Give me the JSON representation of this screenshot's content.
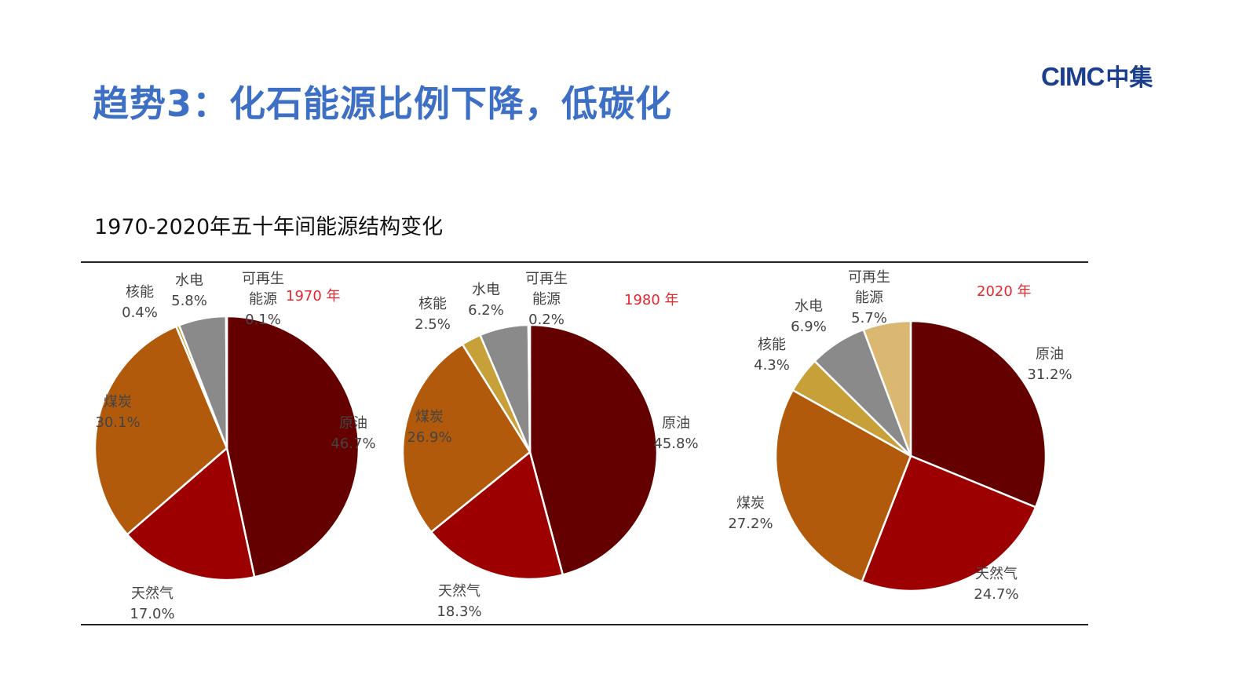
{
  "header": {
    "title": "趋势3：化石能源比例下降，低碳化",
    "brand_latin": "CIMC",
    "brand_chinese": "中集"
  },
  "chart_heading": "1970-2020年五十年间能源结构变化",
  "colors": {
    "crude_oil": "#640000",
    "natural_gas": "#9c0000",
    "coal": "#b25a0c",
    "nuclear": "#c8a03a",
    "hydro": "#8a8a8a",
    "renewables": "#dbb872",
    "year_label": "#e8262d",
    "title": "#3d6fc4"
  },
  "chart_data": [
    {
      "type": "pie",
      "title": "1970 年",
      "slices": [
        {
          "key": "crude_oil",
          "label": "原油",
          "value": 46.7,
          "value_label": "46.7%"
        },
        {
          "key": "natural_gas",
          "label": "天然气",
          "value": 17.0,
          "value_label": "17.0%"
        },
        {
          "key": "coal",
          "label": "煤炭",
          "value": 30.1,
          "value_label": "30.1%"
        },
        {
          "key": "nuclear",
          "label": "核能",
          "value": 0.4,
          "value_label": "0.4%"
        },
        {
          "key": "hydro",
          "label": "水电",
          "value": 5.8,
          "value_label": "5.8%"
        },
        {
          "key": "renewables",
          "label": "可再生能源",
          "label_lines": [
            "可再生",
            "能源"
          ],
          "value": 0.1,
          "value_label": "0.1%"
        }
      ]
    },
    {
      "type": "pie",
      "title": "1980 年",
      "slices": [
        {
          "key": "crude_oil",
          "label": "原油",
          "value": 45.8,
          "value_label": "45.8%"
        },
        {
          "key": "natural_gas",
          "label": "天然气",
          "value": 18.3,
          "value_label": "18.3%"
        },
        {
          "key": "coal",
          "label": "煤炭",
          "value": 26.9,
          "value_label": "26.9%"
        },
        {
          "key": "nuclear",
          "label": "核能",
          "value": 2.5,
          "value_label": "2.5%"
        },
        {
          "key": "hydro",
          "label": "水电",
          "value": 6.2,
          "value_label": "6.2%"
        },
        {
          "key": "renewables",
          "label": "可再生能源",
          "label_lines": [
            "可再生",
            "能源"
          ],
          "value": 0.2,
          "value_label": "0.2%"
        }
      ]
    },
    {
      "type": "pie",
      "title": "2020 年",
      "slices": [
        {
          "key": "crude_oil",
          "label": "原油",
          "value": 31.2,
          "value_label": "31.2%"
        },
        {
          "key": "natural_gas",
          "label": "天然气",
          "value": 24.7,
          "value_label": "24.7%"
        },
        {
          "key": "coal",
          "label": "煤炭",
          "value": 27.2,
          "value_label": "27.2%"
        },
        {
          "key": "nuclear",
          "label": "核能",
          "value": 4.3,
          "value_label": "4.3%"
        },
        {
          "key": "hydro",
          "label": "水电",
          "value": 6.9,
          "value_label": "6.9%"
        },
        {
          "key": "renewables",
          "label": "可再生能源",
          "label_lines": [
            "可再生",
            "能源"
          ],
          "value": 5.7,
          "value_label": "5.7%"
        }
      ]
    }
  ]
}
